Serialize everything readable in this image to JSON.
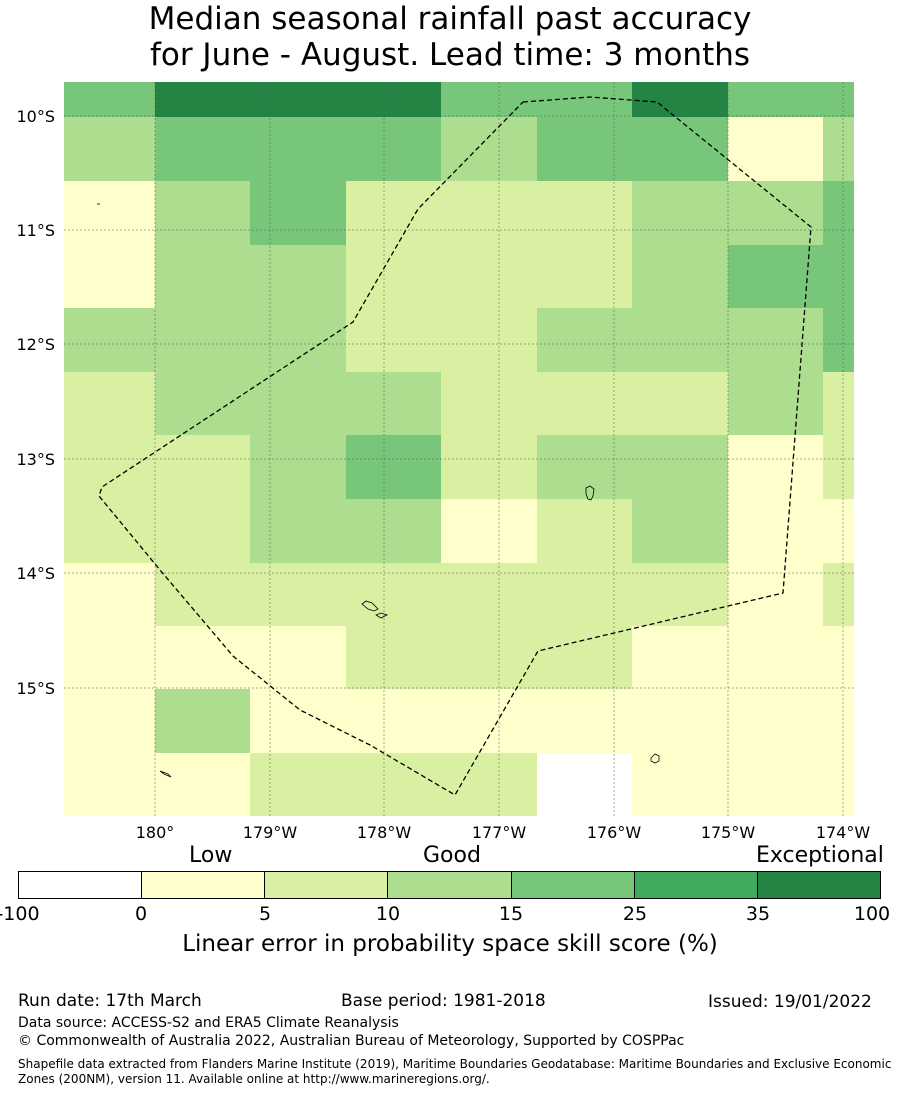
{
  "title": {
    "line1": "Median seasonal rainfall past accuracy",
    "line2": "for June - August. Lead time: 3 months"
  },
  "map": {
    "lat_labels": [
      "10°S",
      "11°S",
      "12°S",
      "13°S",
      "14°S",
      "15°S"
    ],
    "lon_labels": [
      "180°",
      "179°W",
      "178°W",
      "177°W",
      "176°W",
      "175°W",
      "174°W"
    ],
    "grid": [
      [
        4,
        6,
        6,
        6,
        4,
        4,
        6,
        4,
        4
      ],
      [
        3,
        4,
        4,
        4,
        3,
        4,
        4,
        1,
        3
      ],
      [
        1,
        3,
        4,
        2,
        2,
        2,
        3,
        3,
        4
      ],
      [
        1,
        3,
        3,
        2,
        2,
        2,
        3,
        4,
        4
      ],
      [
        3,
        3,
        3,
        2,
        2,
        3,
        3,
        3,
        4
      ],
      [
        2,
        3,
        3,
        3,
        2,
        2,
        2,
        3,
        2
      ],
      [
        2,
        2,
        3,
        4,
        2,
        3,
        3,
        1,
        2
      ],
      [
        2,
        2,
        3,
        3,
        1,
        2,
        3,
        1,
        1
      ],
      [
        1,
        2,
        2,
        2,
        2,
        2,
        2,
        1,
        2
      ],
      [
        1,
        1,
        1,
        2,
        2,
        2,
        1,
        1,
        1
      ],
      [
        1,
        3,
        1,
        1,
        1,
        1,
        1,
        1,
        1
      ],
      [
        1,
        1,
        2,
        2,
        2,
        0,
        1,
        1,
        1
      ]
    ]
  },
  "legend": {
    "categories": [
      "Low",
      "Good",
      "Exceptional"
    ],
    "ticks": [
      "-100",
      "0",
      "5",
      "10",
      "15",
      "25",
      "35",
      "100"
    ],
    "colors": [
      "#ffffff",
      "#ffffcc",
      "#d9f0a3",
      "#addd8e",
      "#78c679",
      "#41ab5d",
      "#238443"
    ],
    "title": "Linear error in probability space skill score (%)"
  },
  "footer": {
    "run_date": "Run date: 17th March",
    "base_period": "Base period: 1981-2018",
    "issued": "Issued: 19/01/2022",
    "data_source": "Data source: ACCESS-S2 and ERA5 Climate Reanalysis",
    "copyright": "© Commonwealth of Australia 2022, Australian Bureau of Meteorology, Supported by COSPPac",
    "shapefile": "Shapefile data extracted from Flanders Marine Institute (2019), Maritime Boundaries Geodatabase: Maritime Boundaries and Exclusive Economic Zones (200NM), version 11. Available online at http://www.marineregions.org/."
  }
}
